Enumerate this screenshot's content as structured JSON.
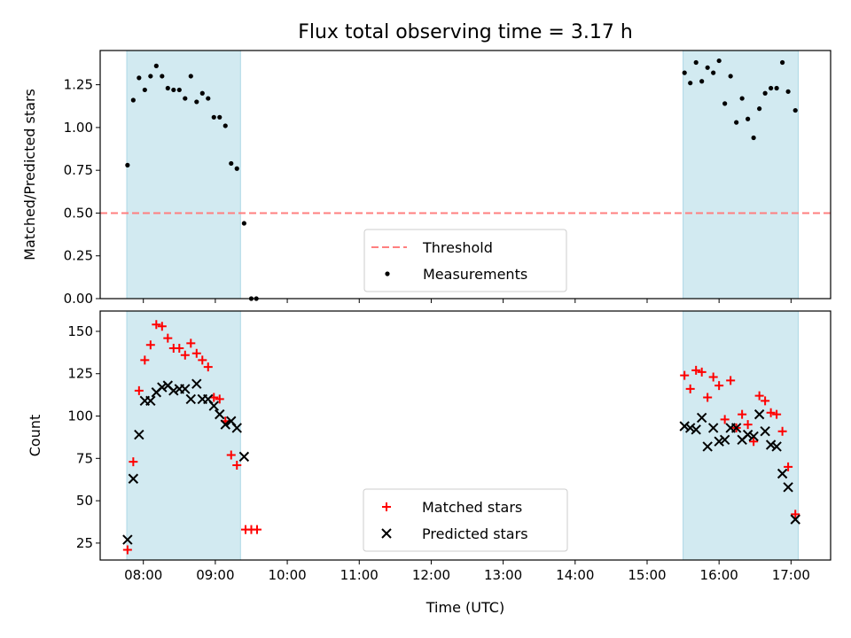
{
  "chart_data": [
    {
      "type": "scatter",
      "title": "Flux total observing time = 3.17 h",
      "xlabel": "",
      "ylabel": "Matched/Predicted stars",
      "xlim": [
        7.4,
        17.55
      ],
      "ylim": [
        0,
        1.45
      ],
      "x_ticks": [
        8,
        9,
        10,
        11,
        12,
        13,
        14,
        15,
        16,
        17
      ],
      "y_ticks": [
        0.0,
        0.25,
        0.5,
        0.75,
        1.0,
        1.25
      ],
      "y_tick_labels": [
        "0.00",
        "0.25",
        "0.50",
        "0.75",
        "1.00",
        "1.25"
      ],
      "shaded_intervals": [
        [
          7.77,
          9.35
        ],
        [
          15.5,
          17.1
        ]
      ],
      "threshold": {
        "name": "Threshold",
        "value": 0.5,
        "color": "#ff7f7f",
        "style": "dashed"
      },
      "series": [
        {
          "name": "Measurements",
          "color": "#000000",
          "marker": "dot",
          "points": [
            [
              7.78,
              0.78
            ],
            [
              7.86,
              1.16
            ],
            [
              7.94,
              1.29
            ],
            [
              8.02,
              1.22
            ],
            [
              8.1,
              1.3
            ],
            [
              8.18,
              1.36
            ],
            [
              8.26,
              1.3
            ],
            [
              8.34,
              1.23
            ],
            [
              8.42,
              1.22
            ],
            [
              8.5,
              1.22
            ],
            [
              8.58,
              1.17
            ],
            [
              8.66,
              1.3
            ],
            [
              8.74,
              1.15
            ],
            [
              8.82,
              1.2
            ],
            [
              8.9,
              1.17
            ],
            [
              8.98,
              1.06
            ],
            [
              9.06,
              1.06
            ],
            [
              9.14,
              1.01
            ],
            [
              9.22,
              0.79
            ],
            [
              9.3,
              0.76
            ],
            [
              9.4,
              0.44
            ],
            [
              9.5,
              0.0
            ],
            [
              9.57,
              0.0
            ],
            [
              15.52,
              1.32
            ],
            [
              15.6,
              1.26
            ],
            [
              15.68,
              1.38
            ],
            [
              15.76,
              1.27
            ],
            [
              15.84,
              1.35
            ],
            [
              15.92,
              1.32
            ],
            [
              16.0,
              1.39
            ],
            [
              16.08,
              1.14
            ],
            [
              16.16,
              1.3
            ],
            [
              16.24,
              1.03
            ],
            [
              16.32,
              1.17
            ],
            [
              16.4,
              1.05
            ],
            [
              16.48,
              0.94
            ],
            [
              16.56,
              1.11
            ],
            [
              16.64,
              1.2
            ],
            [
              16.72,
              1.23
            ],
            [
              16.8,
              1.23
            ],
            [
              16.88,
              1.38
            ],
            [
              16.96,
              1.21
            ],
            [
              17.06,
              1.1
            ]
          ]
        }
      ],
      "legend": {
        "position": "lower center"
      }
    },
    {
      "type": "scatter",
      "title": "",
      "xlabel": "Time (UTC)",
      "ylabel": "Count",
      "xlim": [
        7.4,
        17.55
      ],
      "ylim": [
        15,
        162
      ],
      "x_ticks": [
        8,
        9,
        10,
        11,
        12,
        13,
        14,
        15,
        16,
        17
      ],
      "x_tick_labels": [
        "08:00",
        "09:00",
        "10:00",
        "11:00",
        "12:00",
        "13:00",
        "14:00",
        "15:00",
        "16:00",
        "17:00"
      ],
      "y_ticks": [
        25,
        50,
        75,
        100,
        125,
        150
      ],
      "y_tick_labels": [
        "25",
        "50",
        "75",
        "100",
        "125",
        "150"
      ],
      "shaded_intervals": [
        [
          7.77,
          9.35
        ],
        [
          15.5,
          17.1
        ]
      ],
      "series": [
        {
          "name": "Matched stars",
          "color": "#ff0000",
          "marker": "plus",
          "points": [
            [
              7.78,
              21
            ],
            [
              7.86,
              73
            ],
            [
              7.94,
              115
            ],
            [
              8.02,
              133
            ],
            [
              8.1,
              142
            ],
            [
              8.18,
              154
            ],
            [
              8.26,
              153
            ],
            [
              8.34,
              146
            ],
            [
              8.42,
              140
            ],
            [
              8.5,
              140
            ],
            [
              8.58,
              136
            ],
            [
              8.66,
              143
            ],
            [
              8.74,
              137
            ],
            [
              8.82,
              133
            ],
            [
              8.9,
              129
            ],
            [
              8.98,
              111
            ],
            [
              9.06,
              110
            ],
            [
              9.14,
              97
            ],
            [
              9.22,
              77
            ],
            [
              9.3,
              71
            ],
            [
              9.42,
              33
            ],
            [
              9.5,
              33
            ],
            [
              9.58,
              33
            ],
            [
              15.52,
              124
            ],
            [
              15.6,
              116
            ],
            [
              15.68,
              127
            ],
            [
              15.76,
              126
            ],
            [
              15.84,
              111
            ],
            [
              15.92,
              123
            ],
            [
              16.0,
              118
            ],
            [
              16.08,
              98
            ],
            [
              16.16,
              121
            ],
            [
              16.24,
              93
            ],
            [
              16.32,
              101
            ],
            [
              16.4,
              95
            ],
            [
              16.48,
              85
            ],
            [
              16.56,
              112
            ],
            [
              16.64,
              109
            ],
            [
              16.72,
              102
            ],
            [
              16.8,
              101
            ],
            [
              16.88,
              91
            ],
            [
              16.96,
              70
            ],
            [
              17.06,
              42
            ]
          ]
        },
        {
          "name": "Predicted stars",
          "color": "#000000",
          "marker": "x",
          "points": [
            [
              7.78,
              27
            ],
            [
              7.86,
              63
            ],
            [
              7.94,
              89
            ],
            [
              8.02,
              109
            ],
            [
              8.1,
              109
            ],
            [
              8.18,
              114
            ],
            [
              8.26,
              117
            ],
            [
              8.34,
              118
            ],
            [
              8.42,
              115
            ],
            [
              8.5,
              116
            ],
            [
              8.58,
              116
            ],
            [
              8.66,
              110
            ],
            [
              8.74,
              119
            ],
            [
              8.82,
              110
            ],
            [
              8.9,
              110
            ],
            [
              8.98,
              106
            ],
            [
              9.06,
              101
            ],
            [
              9.14,
              95
            ],
            [
              9.22,
              97
            ],
            [
              9.3,
              93
            ],
            [
              9.4,
              76
            ],
            [
              15.52,
              94
            ],
            [
              15.6,
              93
            ],
            [
              15.68,
              92
            ],
            [
              15.76,
              99
            ],
            [
              15.84,
              82
            ],
            [
              15.92,
              93
            ],
            [
              16.0,
              85
            ],
            [
              16.08,
              86
            ],
            [
              16.16,
              93
            ],
            [
              16.24,
              93
            ],
            [
              16.32,
              86
            ],
            [
              16.4,
              89
            ],
            [
              16.48,
              88
            ],
            [
              16.56,
              101
            ],
            [
              16.64,
              91
            ],
            [
              16.72,
              83
            ],
            [
              16.8,
              82
            ],
            [
              16.88,
              66
            ],
            [
              16.96,
              58
            ],
            [
              17.06,
              39
            ]
          ]
        }
      ],
      "legend": {
        "position": "lower center"
      }
    }
  ],
  "colors": {
    "shade": "#add8e6"
  }
}
